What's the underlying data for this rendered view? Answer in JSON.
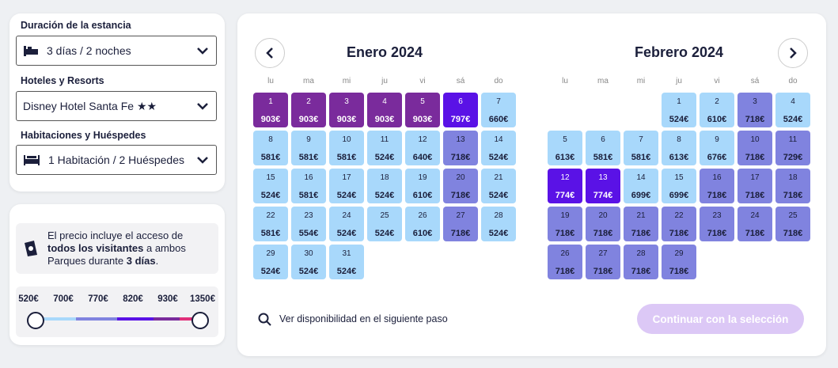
{
  "filters": {
    "stay": {
      "label": "Duración de la estancia",
      "value": "3 días / 2 noches"
    },
    "hotel": {
      "label": "Hoteles y Resorts",
      "value": "Disney Hotel Santa Fe ★★"
    },
    "rooms": {
      "label": "Habitaciones y Huéspedes",
      "value": "1 Habitación / 2 Huéspedes"
    }
  },
  "info": {
    "text": [
      "El precio incluye el acceso de ",
      "todos los visitantes",
      " a ambos Parques durante ",
      "3 días",
      "."
    ],
    "price_scale": [
      "520€",
      "700€",
      "770€",
      "820€",
      "930€",
      "1350€"
    ]
  },
  "calendar": {
    "weekdays": [
      "lu",
      "ma",
      "mi",
      "ju",
      "vi",
      "sá",
      "do"
    ],
    "months": [
      {
        "title": "Enero 2024",
        "days": [
          {
            "day": "1",
            "price": "903€",
            "tier": 3
          },
          {
            "day": "2",
            "price": "903€",
            "tier": 3
          },
          {
            "day": "3",
            "price": "903€",
            "tier": 3
          },
          {
            "day": "4",
            "price": "903€",
            "tier": 3
          },
          {
            "day": "5",
            "price": "903€",
            "tier": 3
          },
          {
            "day": "6",
            "price": "797€",
            "tier": 4
          },
          {
            "day": "7",
            "price": "660€",
            "tier": 1
          },
          {
            "day": "8",
            "price": "581€",
            "tier": 1
          },
          {
            "day": "9",
            "price": "581€",
            "tier": 1
          },
          {
            "day": "10",
            "price": "581€",
            "tier": 1
          },
          {
            "day": "11",
            "price": "524€",
            "tier": 1
          },
          {
            "day": "12",
            "price": "640€",
            "tier": 1
          },
          {
            "day": "13",
            "price": "718€",
            "tier": 2
          },
          {
            "day": "14",
            "price": "524€",
            "tier": 1
          },
          {
            "day": "15",
            "price": "524€",
            "tier": 1
          },
          {
            "day": "16",
            "price": "581€",
            "tier": 1
          },
          {
            "day": "17",
            "price": "524€",
            "tier": 1
          },
          {
            "day": "18",
            "price": "524€",
            "tier": 1
          },
          {
            "day": "19",
            "price": "610€",
            "tier": 1
          },
          {
            "day": "20",
            "price": "718€",
            "tier": 2
          },
          {
            "day": "21",
            "price": "524€",
            "tier": 1
          },
          {
            "day": "22",
            "price": "581€",
            "tier": 1
          },
          {
            "day": "23",
            "price": "554€",
            "tier": 1
          },
          {
            "day": "24",
            "price": "524€",
            "tier": 1
          },
          {
            "day": "25",
            "price": "524€",
            "tier": 1
          },
          {
            "day": "26",
            "price": "610€",
            "tier": 1
          },
          {
            "day": "27",
            "price": "718€",
            "tier": 2
          },
          {
            "day": "28",
            "price": "524€",
            "tier": 1
          },
          {
            "day": "29",
            "price": "524€",
            "tier": 1
          },
          {
            "day": "30",
            "price": "524€",
            "tier": 1
          },
          {
            "day": "31",
            "price": "524€",
            "tier": 1
          }
        ]
      },
      {
        "title": "Febrero 2024",
        "days": [
          null,
          null,
          null,
          {
            "day": "1",
            "price": "524€",
            "tier": 1
          },
          {
            "day": "2",
            "price": "610€",
            "tier": 1
          },
          {
            "day": "3",
            "price": "718€",
            "tier": 2
          },
          {
            "day": "4",
            "price": "524€",
            "tier": 1
          },
          {
            "day": "5",
            "price": "613€",
            "tier": 1
          },
          {
            "day": "6",
            "price": "581€",
            "tier": 1
          },
          {
            "day": "7",
            "price": "581€",
            "tier": 1
          },
          {
            "day": "8",
            "price": "613€",
            "tier": 1
          },
          {
            "day": "9",
            "price": "676€",
            "tier": 1
          },
          {
            "day": "10",
            "price": "718€",
            "tier": 2
          },
          {
            "day": "11",
            "price": "729€",
            "tier": 2
          },
          {
            "day": "12",
            "price": "774€",
            "tier": 4
          },
          {
            "day": "13",
            "price": "774€",
            "tier": 4
          },
          {
            "day": "14",
            "price": "699€",
            "tier": 1
          },
          {
            "day": "15",
            "price": "699€",
            "tier": 1
          },
          {
            "day": "16",
            "price": "718€",
            "tier": 2
          },
          {
            "day": "17",
            "price": "718€",
            "tier": 2
          },
          {
            "day": "18",
            "price": "718€",
            "tier": 2
          },
          {
            "day": "19",
            "price": "718€",
            "tier": 2
          },
          {
            "day": "20",
            "price": "718€",
            "tier": 2
          },
          {
            "day": "21",
            "price": "718€",
            "tier": 2
          },
          {
            "day": "22",
            "price": "718€",
            "tier": 2
          },
          {
            "day": "23",
            "price": "718€",
            "tier": 2
          },
          {
            "day": "24",
            "price": "718€",
            "tier": 2
          },
          {
            "day": "25",
            "price": "718€",
            "tier": 2
          },
          {
            "day": "26",
            "price": "718€",
            "tier": 2
          },
          {
            "day": "27",
            "price": "718€",
            "tier": 2
          },
          {
            "day": "28",
            "price": "718€",
            "tier": 2
          },
          {
            "day": "29",
            "price": "718€",
            "tier": 2
          }
        ]
      }
    ]
  },
  "footer": {
    "hint": "Ver disponibilidad en el siguiente paso",
    "button": "Continuar con la selección"
  }
}
